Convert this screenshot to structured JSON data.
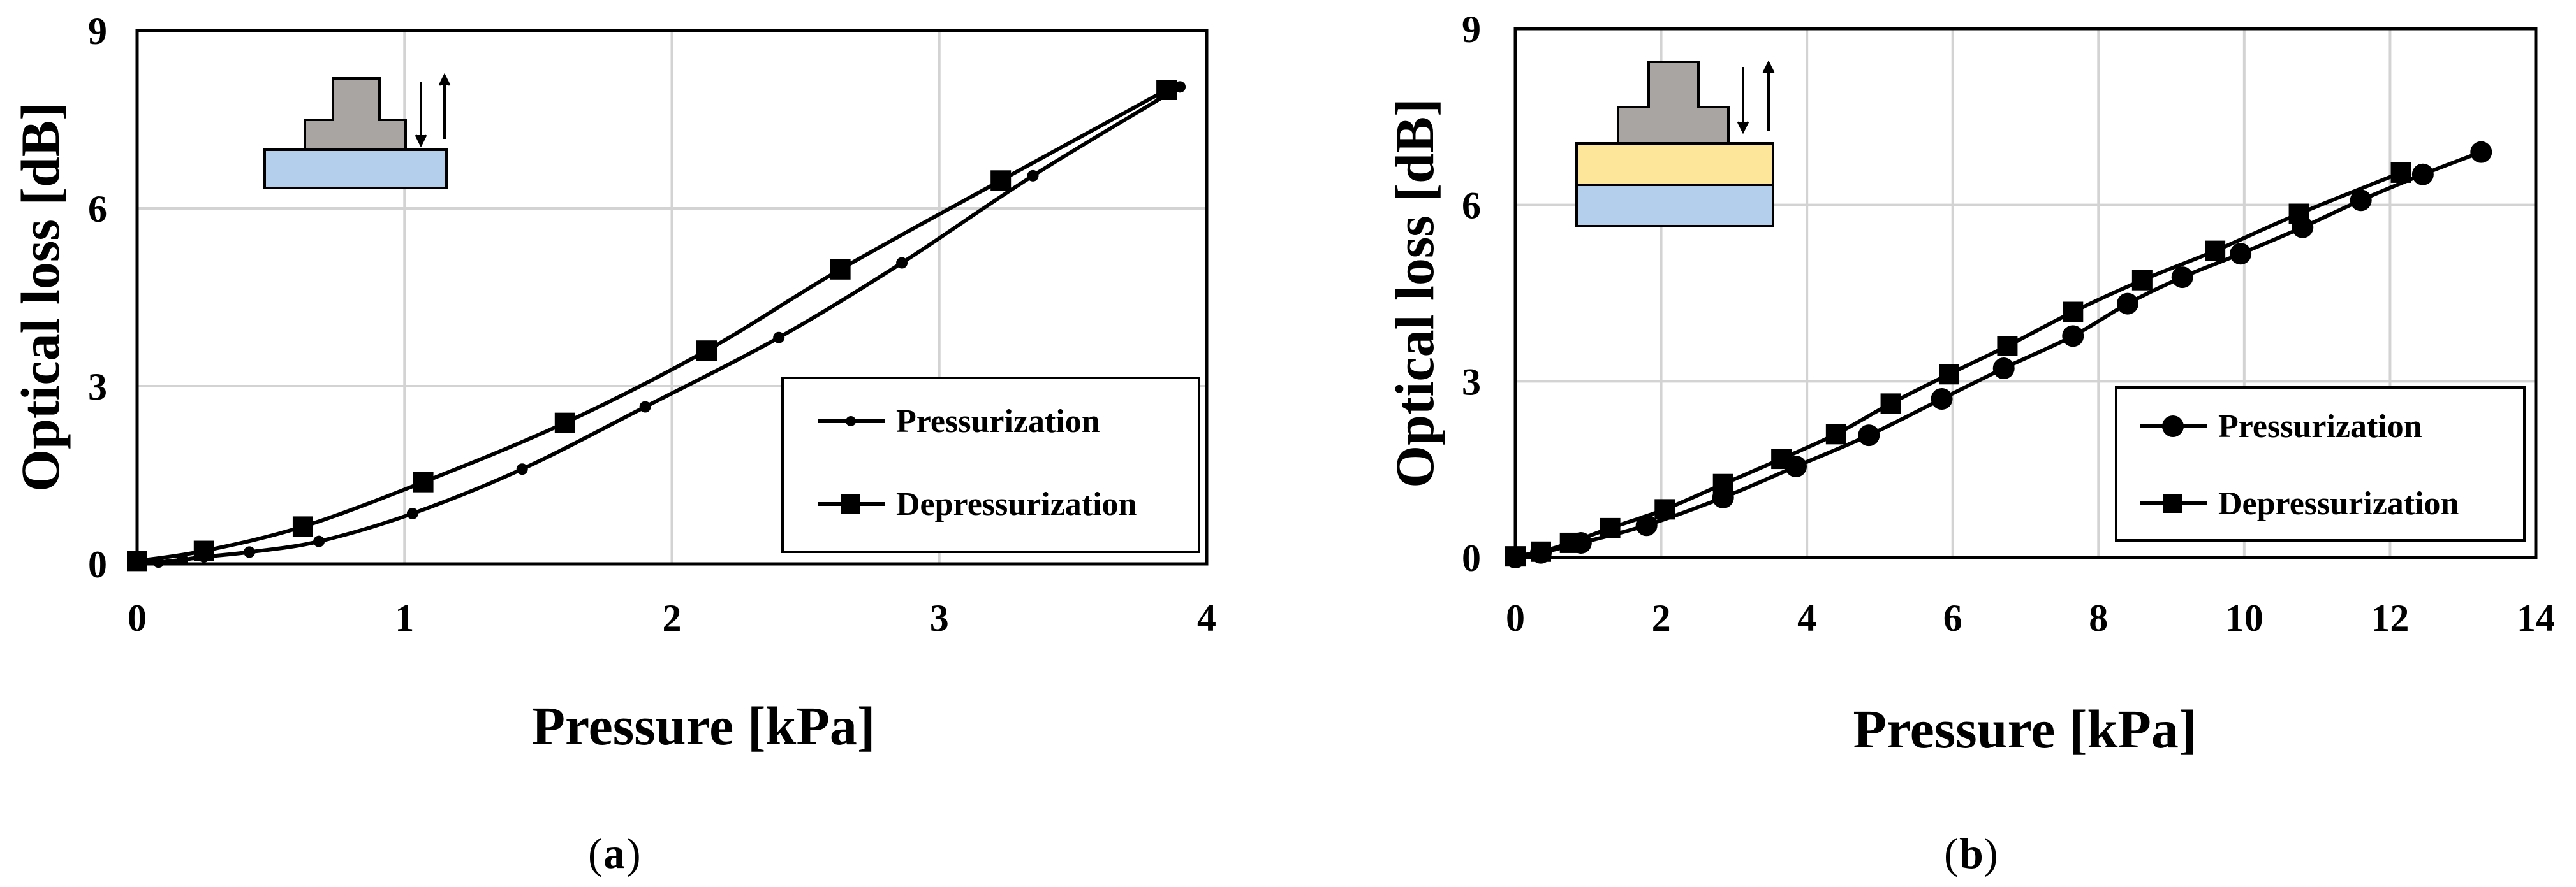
{
  "chart_data": [
    {
      "type": "line",
      "caption_label": "a",
      "xlabel": "Pressure [kPa]",
      "ylabel": "Optical loss [dB]",
      "xlim": [
        0,
        4
      ],
      "ylim": [
        0,
        9
      ],
      "xticks": [
        0,
        1,
        2,
        3,
        4
      ],
      "yticks": [
        0,
        3,
        6,
        9
      ],
      "grid": true,
      "legend_position": "bottom-right",
      "inset": "weight-on-single-layer",
      "series": [
        {
          "name": "Pressurization",
          "marker": "small-circle",
          "x": [
            0,
            0.08,
            0.17,
            0.25,
            0.42,
            0.68,
            1.03,
            1.44,
            1.9,
            2.4,
            2.86,
            3.35,
            3.9
          ],
          "y": [
            0,
            0.03,
            0.07,
            0.12,
            0.2,
            0.38,
            0.85,
            1.6,
            2.65,
            3.82,
            5.08,
            6.55,
            8.05
          ]
        },
        {
          "name": "Depressurization",
          "marker": "square",
          "x": [
            0,
            0.25,
            0.62,
            1.07,
            1.6,
            2.13,
            2.63,
            3.23,
            3.85
          ],
          "y": [
            0.05,
            0.22,
            0.63,
            1.38,
            2.38,
            3.6,
            4.97,
            6.47,
            8.0
          ]
        }
      ]
    },
    {
      "type": "line",
      "caption_label": "b",
      "xlabel": "Pressure [kPa]",
      "ylabel": "Optical loss [dB]",
      "xlim": [
        0,
        14
      ],
      "ylim": [
        0,
        9
      ],
      "xticks": [
        0,
        2,
        4,
        6,
        8,
        10,
        12,
        14
      ],
      "yticks": [
        0,
        3,
        6,
        9
      ],
      "grid": true,
      "legend_position": "bottom-right",
      "inset": "weight-on-double-layer",
      "series": [
        {
          "name": "Pressurization",
          "marker": "circle",
          "x": [
            0,
            0.35,
            0.9,
            1.8,
            2.85,
            3.85,
            4.85,
            5.85,
            6.7,
            7.65,
            8.4,
            9.15,
            9.95,
            10.8,
            11.6,
            12.45,
            13.25
          ],
          "y": [
            0,
            0.08,
            0.25,
            0.55,
            1.02,
            1.55,
            2.08,
            2.7,
            3.22,
            3.77,
            4.32,
            4.77,
            5.17,
            5.62,
            6.08,
            6.52,
            6.9
          ]
        },
        {
          "name": "Depressurization",
          "marker": "square",
          "x": [
            0,
            0.35,
            0.75,
            1.3,
            2.05,
            2.85,
            3.65,
            4.4,
            5.15,
            5.95,
            6.75,
            7.65,
            8.6,
            9.6,
            10.75,
            12.15
          ],
          "y": [
            0.02,
            0.1,
            0.25,
            0.5,
            0.82,
            1.25,
            1.68,
            2.1,
            2.62,
            3.12,
            3.6,
            4.18,
            4.72,
            5.22,
            5.85,
            6.55
          ]
        }
      ]
    }
  ]
}
